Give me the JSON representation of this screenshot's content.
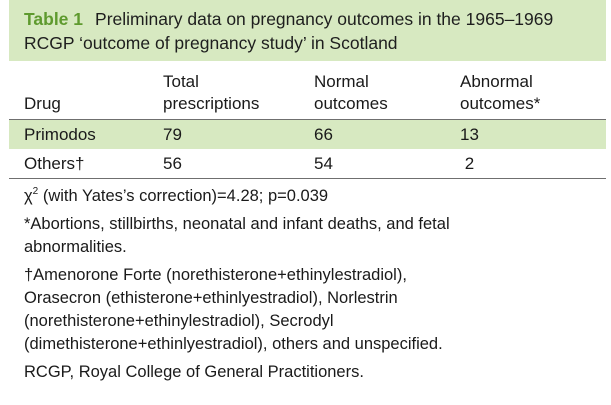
{
  "table": {
    "label": "Table 1",
    "title_line1": "Preliminary data on pregnancy outcomes in the 1965–1969",
    "title_line2": "RCGP ‘outcome of pregnancy study’ in Scotland",
    "headers": {
      "drug": "Drug",
      "total_line1": "Total",
      "total_line2": "prescriptions",
      "normal_line1": "Normal",
      "normal_line2": "outcomes",
      "abnormal_line1": "Abnormal",
      "abnormal_line2": "outcomes*"
    },
    "rows": [
      {
        "drug": "Primodos",
        "total": "79",
        "normal": "66",
        "abnormal": "13"
      },
      {
        "drug": "Others†",
        "total": "56",
        "normal": "54",
        "abnormal": " 2"
      }
    ]
  },
  "footnotes": {
    "chi_symbol": "χ",
    "chi_exp": "2",
    "chi_text": " (with Yates’s correction)=4.28; p=0.039",
    "fn_abnormal_line1": "*Abortions, stillbirths, neonatal and infant deaths, and fetal",
    "fn_abnormal_line2": "abnormalities.",
    "fn_others_line1": "†Amenorone Forte (norethisterone+ethinylestradiol),",
    "fn_others_line2": "Orasecron (ethisterone+ethinlyestradiol), Norlestrin",
    "fn_others_line3": "(norethisterone+ethinylestradiol), Secrodyl",
    "fn_others_line4": "(dimethisterone+ethinlyestradiol), others and unspecified.",
    "fn_rcgp": "RCGP, Royal College of General Practitioners."
  }
}
